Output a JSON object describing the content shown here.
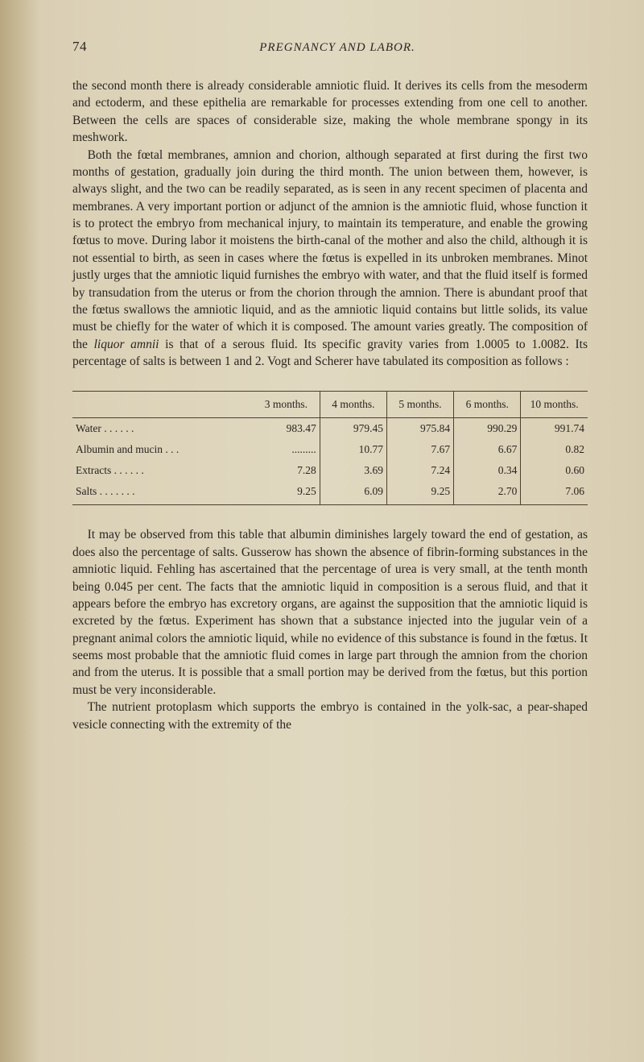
{
  "page": {
    "number": "74",
    "running_title": "PREGNANCY AND LABOR."
  },
  "paragraphs": {
    "p1": "the second month there is already considerable amniotic fluid. It derives its cells from the mesoderm and ectoderm, and these epithelia are remarkable for processes extending from one cell to another. Between the cells are spaces of considerable size, making the whole membrane spongy in its meshwork.",
    "p2_a": "Both the fœtal membranes, amnion and chorion, although separated at first during the first two months of gestation, gradually join during the third month. The union between them, however, is always slight, and the two can be readily separated, as is seen in any recent specimen of placenta and membranes. A very important portion or adjunct of the amnion is the amniotic fluid, whose function it is to protect the embryo from mechanical injury, to maintain its temperature, and enable the growing fœtus to move. During labor it moistens the birth-canal of the mother and also the child, although it is not essential to birth, as seen in cases where the fœtus is expelled in its unbroken membranes. Minot justly urges that the amniotic liquid furnishes the embryo with water, and that the fluid itself is formed by transudation from the uterus or from the chorion through the amnion. There is abundant proof that the fœtus swallows the amniotic liquid, and as the amniotic liquid contains but little solids, its value must be chiefly for the water of which it is composed. The amount varies greatly. The composition of the ",
    "p2_italic": "liquor amnii",
    "p2_b": " is that of a serous fluid. Its specific gravity varies from 1.0005 to 1.0082. Its percentage of salts is between 1 and 2. Vogt and Scherer have tabulated its composition as follows :",
    "p3": "It may be observed from this table that albumin diminishes largely toward the end of gestation, as does also the percentage of salts. Gusserow has shown the absence of fibrin-forming substances in the amniotic liquid. Fehling has ascertained that the percentage of urea is very small, at the tenth month being 0.045 per cent. The facts that the amniotic liquid in composition is a serous fluid, and that it appears before the embryo has excretory organs, are against the supposition that the amniotic liquid is excreted by the fœtus. Experiment has shown that a substance injected into the jugular vein of a pregnant animal colors the amniotic liquid, while no evidence of this substance is found in the fœtus. It seems most probable that the amniotic fluid comes in large part through the amnion from the chorion and from the uterus. It is possible that a small portion may be derived from the fœtus, but this portion must be very inconsiderable.",
    "p4": "The nutrient protoplasm which supports the embryo is contained in the yolk-sac, a pear-shaped vesicle connecting with the extremity of the"
  },
  "table": {
    "columns": [
      "",
      "3 months.",
      "4 months.",
      "5 months.",
      "6 months.",
      "10 months."
    ],
    "rows": [
      {
        "label": "Water . . . . . .",
        "c1": "983.47",
        "c2": "979.45",
        "c3": "975.84",
        "c4": "990.29",
        "c5": "991.74"
      },
      {
        "label": "Albumin and mucin . . .",
        "c1": ".........",
        "c2": "10.77",
        "c3": "7.67",
        "c4": "6.67",
        "c5": "0.82"
      },
      {
        "label": "Extracts . . . . . .",
        "c1": "7.28",
        "c2": "3.69",
        "c3": "7.24",
        "c4": "0.34",
        "c5": "0.60"
      },
      {
        "label": "Salts . . . . . . .",
        "c1": "9.25",
        "c2": "6.09",
        "c3": "9.25",
        "c4": "2.70",
        "c5": "7.06"
      }
    ]
  },
  "style": {
    "page_bg": "#dcd2b8",
    "text_color": "#2a2520",
    "rule_color": "#4a4030",
    "body_fontsize": 15.5,
    "table_fontsize": 13.5,
    "header_fontsize": 15
  }
}
